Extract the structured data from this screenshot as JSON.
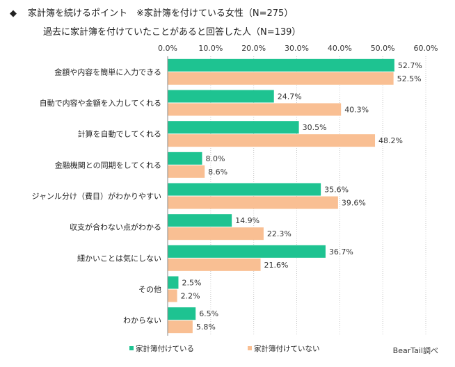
{
  "header": {
    "bullet": "◆",
    "line1": "家計簿を続けるポイント　※家計簿を付けている女性（N=275）",
    "line2": "過去に家計簿を付けていたことがあると回答した人（N=139）"
  },
  "source": "BearTail調べ",
  "colors": {
    "series1": "#1ec391",
    "series2": "#f9bf93",
    "grid": "#c8c8c8",
    "axis": "#888888"
  },
  "chart_data": {
    "type": "bar",
    "orientation": "horizontal",
    "title": "家計簿を続けるポイント　※家計簿を付けている女性（N=275）　過去に家計簿を付けていたことがあると回答した人（N=139）",
    "categories": [
      "金額や内容を簡単に入力できる",
      "自動で内容や金額を入力してくれる",
      "計算を自動でしてくれる",
      "金融機関との同期をしてくれる",
      "ジャンル分け（費目）がわかりやすい",
      "収支が合わない点がわかる",
      "細かいことは気にしない",
      "その他",
      "わからない"
    ],
    "series": [
      {
        "name": "家計簿付けている",
        "values": [
          52.7,
          24.7,
          30.5,
          8.0,
          35.6,
          14.9,
          36.7,
          2.5,
          6.5
        ]
      },
      {
        "name": "家計簿付けていない",
        "values": [
          52.5,
          40.3,
          48.2,
          8.6,
          39.6,
          22.3,
          21.6,
          2.2,
          5.8
        ]
      }
    ],
    "value_labels": [
      [
        "52.7%",
        "24.7%",
        "30.5%",
        "8.0%",
        "35.6%",
        "14.9%",
        "36.7%",
        "2.5%",
        "6.5%"
      ],
      [
        "52.5%",
        "40.3%",
        "48.2%",
        "8.6%",
        "39.6%",
        "22.3%",
        "21.6%",
        "2.2%",
        "5.8%"
      ]
    ],
    "xlim": [
      0,
      60
    ],
    "xticks": [
      "0.0%",
      "10.0%",
      "20.0%",
      "30.0%",
      "40.0%",
      "50.0%",
      "60.0%"
    ],
    "xlabel": "",
    "ylabel": "",
    "grid": true,
    "legend_position": "bottom"
  }
}
